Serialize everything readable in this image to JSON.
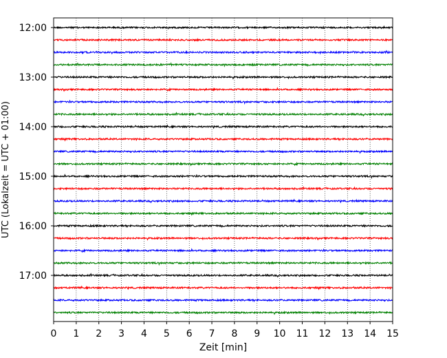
{
  "chart_data": {
    "type": "line",
    "title": "",
    "xlabel": "Zeit  [min]",
    "ylabel": "UTC (Lokalzeit = UTC + 01:00)",
    "xlim": [
      0,
      15
    ],
    "x_ticks": [
      0,
      1,
      2,
      3,
      4,
      5,
      6,
      7,
      8,
      9,
      10,
      11,
      12,
      13,
      14,
      15
    ],
    "x_tick_labels": [
      "0",
      "1",
      "2",
      "3",
      "4",
      "5",
      "6",
      "7",
      "8",
      "9",
      "10",
      "11",
      "12",
      "13",
      "14",
      "15"
    ],
    "y_tick_labels": [
      "12:00",
      "13:00",
      "14:00",
      "15:00",
      "16:00",
      "17:00"
    ],
    "trace_interval_minutes": 15,
    "first_trace_start": "12:00",
    "trace_count": 24,
    "colors": [
      "#000000",
      "#ff0000",
      "#0000ff",
      "#008000"
    ],
    "grid": "vertical-dotted",
    "series": [
      {
        "start": "12:00",
        "color": "#000000"
      },
      {
        "start": "12:15",
        "color": "#ff0000"
      },
      {
        "start": "12:30",
        "color": "#0000ff"
      },
      {
        "start": "12:45",
        "color": "#008000"
      },
      {
        "start": "13:00",
        "color": "#000000"
      },
      {
        "start": "13:15",
        "color": "#ff0000"
      },
      {
        "start": "13:30",
        "color": "#0000ff"
      },
      {
        "start": "13:45",
        "color": "#008000"
      },
      {
        "start": "14:00",
        "color": "#000000"
      },
      {
        "start": "14:15",
        "color": "#ff0000"
      },
      {
        "start": "14:30",
        "color": "#0000ff"
      },
      {
        "start": "14:45",
        "color": "#008000"
      },
      {
        "start": "15:00",
        "color": "#000000"
      },
      {
        "start": "15:15",
        "color": "#ff0000"
      },
      {
        "start": "15:30",
        "color": "#0000ff"
      },
      {
        "start": "15:45",
        "color": "#008000"
      },
      {
        "start": "16:00",
        "color": "#000000"
      },
      {
        "start": "16:15",
        "color": "#ff0000"
      },
      {
        "start": "16:30",
        "color": "#0000ff"
      },
      {
        "start": "16:45",
        "color": "#008000"
      },
      {
        "start": "17:00",
        "color": "#000000"
      },
      {
        "start": "17:15",
        "color": "#ff0000"
      },
      {
        "start": "17:30",
        "color": "#0000ff"
      },
      {
        "start": "17:45",
        "color": "#008000"
      }
    ]
  }
}
